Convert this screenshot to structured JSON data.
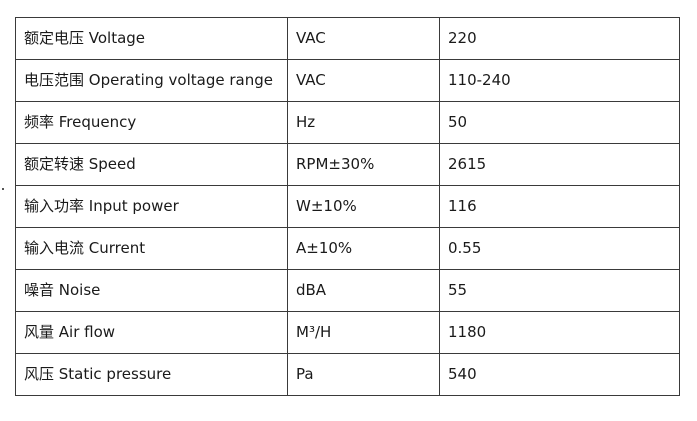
{
  "spec_table": {
    "rows": [
      {
        "parameter": "额定电压 Voltage",
        "unit": "VAC",
        "value": "220"
      },
      {
        "parameter": "电压范围 Operating voltage range",
        "unit": "VAC",
        "value": "110-240"
      },
      {
        "parameter": "频率 Frequency",
        "unit": "Hz",
        "value": "50"
      },
      {
        "parameter": "额定转速 Speed",
        "unit": "RPM±30%",
        "value": "2615"
      },
      {
        "parameter": "输入功率 Input power",
        "unit": "W±10%",
        "value": "116"
      },
      {
        "parameter": "输入电流  Current",
        "unit": "A±10%",
        "value": "0.55"
      },
      {
        "parameter": "噪音 Noise",
        "unit": "dBA",
        "value": "55"
      },
      {
        "parameter": "风量 Air flow",
        "unit": "M³/H",
        "value": "1180"
      },
      {
        "parameter": "风压  Static pressure",
        "unit": "Pa",
        "value": "540"
      }
    ]
  }
}
